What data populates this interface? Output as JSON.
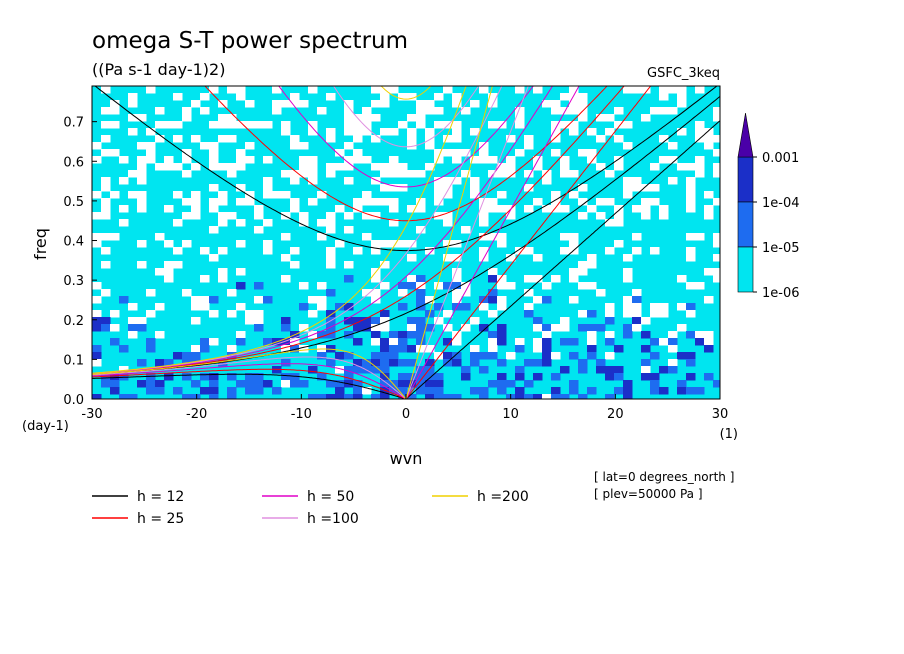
{
  "chart_data": {
    "type": "heatmap",
    "title": "omega S-T power spectrum",
    "subtitle": "((Pa s-1 day-1)2)",
    "dataset": "GSFC_3keq",
    "xlabel": "wvn",
    "ylabel": "freq",
    "x_unit": "(1)",
    "y_unit": "(day-1)",
    "xlim": [
      -30,
      30
    ],
    "ylim": [
      0,
      0.79
    ],
    "x_ticks": [
      -30,
      -20,
      -10,
      0,
      10,
      20,
      30
    ],
    "x_tick_labels": [
      "-30",
      "-20",
      "-10",
      "0",
      "10",
      "20",
      "30"
    ],
    "y_ticks": [
      0,
      0.1,
      0.2,
      0.3,
      0.4,
      0.5,
      0.6,
      0.7
    ],
    "y_tick_labels": [
      "0.0",
      "0.1",
      "0.2",
      "0.3",
      "0.4",
      "0.5",
      "0.6",
      "0.7"
    ],
    "colorbar": {
      "levels": [
        "1e-06",
        "1e-05",
        "1e-04",
        "0.001"
      ],
      "colors": [
        "#00e5f0",
        "#1e6cf0",
        "#1b2fc8",
        "#4a00a8"
      ]
    },
    "field_notes": [
      "[ lat=0 degrees_north ]",
      "[ plev=50000 Pa ]"
    ],
    "dispersion_legend": [
      {
        "label": "h = 12",
        "h": 12,
        "color": "#000000"
      },
      {
        "label": "h = 25",
        "h": 25,
        "color": "#ff0000"
      },
      {
        "label": "h = 50",
        "h": 50,
        "color": "#e000c8"
      },
      {
        "label": "h =100",
        "h": 100,
        "color": "#e090e0"
      },
      {
        "label": "h =200",
        "h": 200,
        "color": "#f0d000"
      }
    ]
  }
}
